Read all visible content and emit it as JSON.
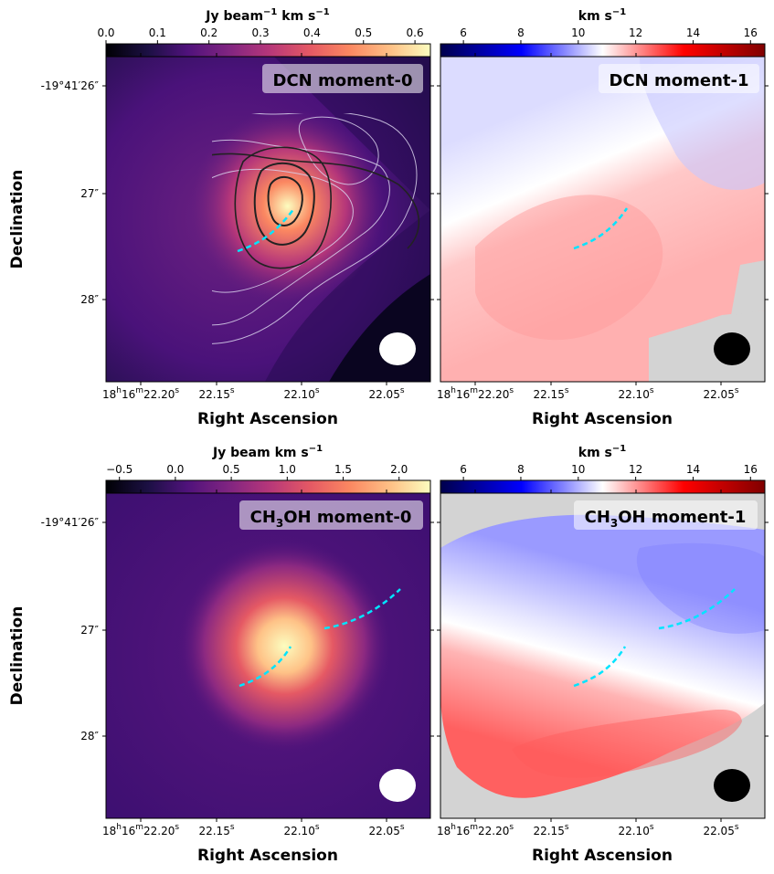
{
  "chart_data": [
    {
      "type": "heatmap",
      "panel_label": "DCN moment-0",
      "colorbar": {
        "label": "Jy beam⁻¹ km s⁻¹",
        "ticks": [
          "0.0",
          "0.1",
          "0.2",
          "0.3",
          "0.4",
          "0.5",
          "0.6"
        ],
        "range": [
          0.0,
          0.63
        ],
        "colormap": "magma"
      },
      "x_axis": {
        "label": "Right Ascension",
        "ticks": [
          "18h16m22.20s",
          "22.15s",
          "22.10s",
          "22.05s"
        ]
      },
      "y_axis": {
        "label": "Declination",
        "ticks": [
          "-19°41′26″",
          "27″",
          "28″"
        ]
      },
      "beam": "ellipse (white)",
      "outflow_marker": "cyan dashed arc"
    },
    {
      "type": "heatmap",
      "panel_label": "DCN moment-1",
      "colorbar": {
        "label": "km s⁻¹",
        "ticks": [
          "6",
          "8",
          "10",
          "12",
          "14",
          "16"
        ],
        "range": [
          5.2,
          16.5
        ],
        "colormap": "seismic"
      },
      "x_axis": {
        "label": "Right Ascension",
        "ticks": [
          "18h16m22.20s",
          "22.15s",
          "22.10s",
          "22.05s"
        ]
      },
      "y_axis": {
        "label": "",
        "ticks": []
      },
      "beam": "ellipse (black)",
      "outflow_marker": "cyan dashed arc"
    },
    {
      "type": "heatmap",
      "panel_label": "CH3OH moment-0",
      "colorbar": {
        "label": "Jy beam km s⁻¹",
        "ticks": [
          "−0.5",
          "0.0",
          "0.5",
          "1.0",
          "1.5",
          "2.0"
        ],
        "range": [
          -0.62,
          2.28
        ],
        "colormap": "magma"
      },
      "x_axis": {
        "label": "Right Ascension",
        "ticks": [
          "18h16m22.20s",
          "22.15s",
          "22.10s",
          "22.05s"
        ]
      },
      "y_axis": {
        "label": "Declination",
        "ticks": [
          "-19°41′26″",
          "27″",
          "28″"
        ]
      },
      "beam": "ellipse (white)",
      "outflow_marker": "two cyan dashed arcs"
    },
    {
      "type": "heatmap",
      "panel_label": "CH3OH moment-1",
      "colorbar": {
        "label": "km s⁻¹",
        "ticks": [
          "6",
          "8",
          "10",
          "12",
          "14",
          "16"
        ],
        "range": [
          5.2,
          16.5
        ],
        "colormap": "seismic"
      },
      "x_axis": {
        "label": "Right Ascension",
        "ticks": [
          "18h16m22.20s",
          "22.15s",
          "22.10s",
          "22.05s"
        ]
      },
      "y_axis": {
        "label": "",
        "ticks": []
      },
      "beam": "ellipse (black)",
      "outflow_marker": "two cyan dashed arcs"
    }
  ],
  "axes_text": {
    "xlabel": "Right Ascension",
    "ylabel": "Declination",
    "ra_first_h": "18",
    "ra_first_m": "16",
    "ra_first_s": "22.20",
    "ra_second": "22.15",
    "ra_third": "22.10",
    "ra_fourth": "22.05",
    "ra_sec_sym": "s",
    "h_sym": "h",
    "m_sym": "m",
    "dec_first": "-19°41′26″",
    "dec_second": "27″",
    "dec_third": "28″"
  },
  "titles": {
    "p1_text": "DCN moment-0",
    "p2_text": "DCN moment-1",
    "p3_pre": "CH",
    "p3_sub": "3",
    "p3_post": "OH moment-0",
    "p4_pre": "CH",
    "p4_sub": "3",
    "p4_post": "OH moment-1"
  },
  "colorbar_labels": {
    "c1_pre": "Jy beam",
    "c1_sup": "−1",
    "c1_post": " km s",
    "c1_sup2": "−1",
    "c2_pre": "km s",
    "c2_sup": "−1",
    "c3_pre": "Jy beam km s",
    "c3_sup": "−1",
    "c4_pre": "km s",
    "c4_sup": "−1"
  },
  "colorbar_ticks": {
    "c1": [
      "0.0",
      "0.1",
      "0.2",
      "0.3",
      "0.4",
      "0.5",
      "0.6"
    ],
    "c2": [
      "6",
      "8",
      "10",
      "12",
      "14",
      "16"
    ],
    "c3": [
      "−0.5",
      "0.0",
      "0.5",
      "1.0",
      "1.5",
      "2.0"
    ],
    "c4": [
      "6",
      "8",
      "10",
      "12",
      "14",
      "16"
    ]
  }
}
